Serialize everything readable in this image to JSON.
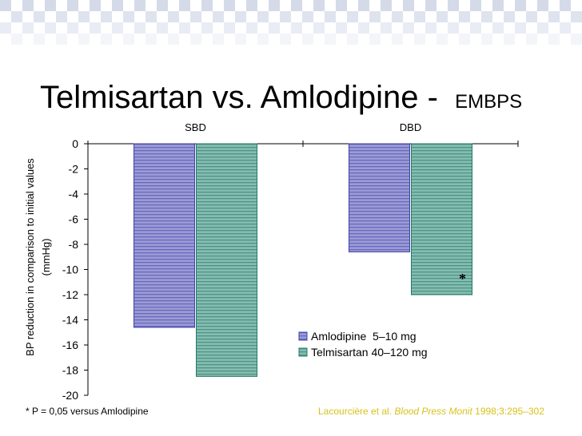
{
  "slide": {
    "title_main": "Telmisartan vs. Amlodipine -",
    "title_suffix": "EMBPS",
    "footnote": "* P = 0,05 versus Amlodipine",
    "citation_authors": "Lacourcière et al.",
    "citation_journal": "Blood Press Monit",
    "citation_ref": "1998;3:295–302"
  },
  "colors": {
    "amlodipine": "#9b9bd6",
    "amlodipine_stripe": "#4040a8",
    "telmisartan": "#86bdb0",
    "telmisartan_stripe": "#237a6b",
    "citation": "#d6c21c",
    "banner_check": "#cfd6e6"
  },
  "chart_data": {
    "type": "bar",
    "categories": [
      "SBD",
      "DBD"
    ],
    "series": [
      {
        "name": "Amlodipine  5–10 mg",
        "values": [
          -14.6,
          -8.6
        ]
      },
      {
        "name": "Telmisartan 40–120 mg",
        "values": [
          -18.5,
          -12.0
        ]
      }
    ],
    "ylabel": "BP reduction in comparison to initial values (mmHg)",
    "ylim": [
      -20,
      0
    ],
    "yticks": [
      0,
      -2,
      -4,
      -6,
      -8,
      -10,
      -12,
      -14,
      -16,
      -18,
      -20
    ],
    "annotations": [
      {
        "category": "DBD",
        "series": "Telmisartan 40–120 mg",
        "text": "*"
      }
    ],
    "grid": false,
    "legend_position": "bottom-right",
    "category_labels_position": "top"
  }
}
